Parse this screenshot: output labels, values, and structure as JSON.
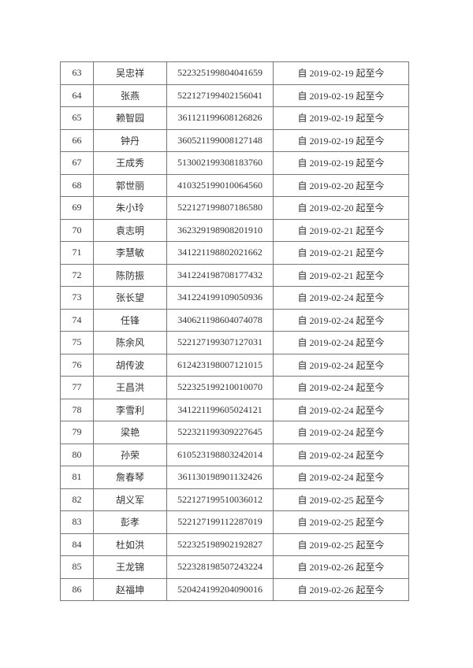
{
  "rows": [
    {
      "no": "63",
      "name": "吴忠祥",
      "id": "522325199804041659",
      "period": "自 2019-02-19 起至今"
    },
    {
      "no": "64",
      "name": "张燕",
      "id": "522127199402156041",
      "period": "自 2019-02-19 起至今"
    },
    {
      "no": "65",
      "name": "赖智园",
      "id": "361121199608126826",
      "period": "自 2019-02-19 起至今"
    },
    {
      "no": "66",
      "name": "钟丹",
      "id": "360521199008127148",
      "period": "自 2019-02-19 起至今"
    },
    {
      "no": "67",
      "name": "王成秀",
      "id": "513002199308183760",
      "period": "自 2019-02-19 起至今"
    },
    {
      "no": "68",
      "name": "郭世丽",
      "id": "410325199010064560",
      "period": "自 2019-02-20 起至今"
    },
    {
      "no": "69",
      "name": "朱小玲",
      "id": "522127199807186580",
      "period": "自 2019-02-20 起至今"
    },
    {
      "no": "70",
      "name": "袁志明",
      "id": "362329198908201910",
      "period": "自 2019-02-21 起至今"
    },
    {
      "no": "71",
      "name": "李慧敏",
      "id": "341221198802021662",
      "period": "自 2019-02-21 起至今"
    },
    {
      "no": "72",
      "name": "陈防振",
      "id": "341224198708177432",
      "period": "自 2019-02-21 起至今"
    },
    {
      "no": "73",
      "name": "张长望",
      "id": "341224199109050936",
      "period": "自 2019-02-24 起至今"
    },
    {
      "no": "74",
      "name": "任锋",
      "id": "340621198604074078",
      "period": "自 2019-02-24 起至今"
    },
    {
      "no": "75",
      "name": "陈余风",
      "id": "522127199307127031",
      "period": "自 2019-02-24 起至今"
    },
    {
      "no": "76",
      "name": "胡传波",
      "id": "612423198007121015",
      "period": "自 2019-02-24 起至今"
    },
    {
      "no": "77",
      "name": "王昌洪",
      "id": "522325199210010070",
      "period": "自 2019-02-24 起至今"
    },
    {
      "no": "78",
      "name": "李雪利",
      "id": "341221199605024121",
      "period": "自 2019-02-24 起至今"
    },
    {
      "no": "79",
      "name": "梁艳",
      "id": "522321199309227645",
      "period": "自 2019-02-24 起至今"
    },
    {
      "no": "80",
      "name": "孙荣",
      "id": "610523198803242014",
      "period": "自 2019-02-24 起至今"
    },
    {
      "no": "81",
      "name": "詹春琴",
      "id": "361130198901132426",
      "period": "自 2019-02-24 起至今"
    },
    {
      "no": "82",
      "name": "胡义军",
      "id": "522127199510036012",
      "period": "自 2019-02-25 起至今"
    },
    {
      "no": "83",
      "name": "彭孝",
      "id": "522127199112287019",
      "period": "自 2019-02-25 起至今"
    },
    {
      "no": "84",
      "name": "杜如洪",
      "id": "522325198902192827",
      "period": "自 2019-02-25 起至今"
    },
    {
      "no": "85",
      "name": "王龙锦",
      "id": "522328198507243224",
      "period": "自 2019-02-26 起至今"
    },
    {
      "no": "86",
      "name": "赵福坤",
      "id": "520424199204090016",
      "period": "自 2019-02-26 起至今"
    }
  ]
}
